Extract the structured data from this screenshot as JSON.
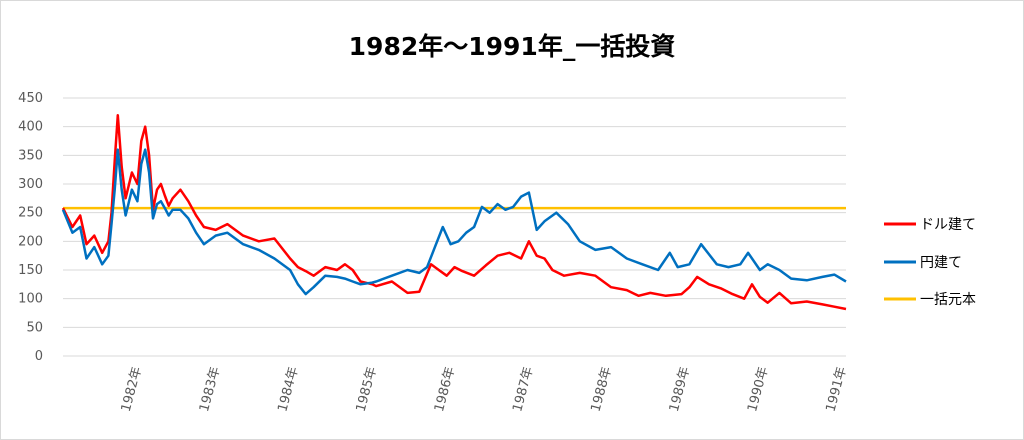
{
  "chart_data": {
    "type": "line",
    "title": "1982年～1991年_一括投資",
    "ylim": [
      0,
      450
    ],
    "yticks": [
      0,
      50,
      100,
      150,
      200,
      250,
      300,
      350,
      400,
      450
    ],
    "xlim": [
      1981.0,
      1991.0
    ],
    "xticks": [
      "1982年",
      "1983年",
      "1984年",
      "1985年",
      "1986年",
      "1987年",
      "1988年",
      "1989年",
      "1990年",
      "1991年"
    ],
    "grid": true,
    "legend_position": "right",
    "series": [
      {
        "name": "ドル建て",
        "color": "#ff0000",
        "x": [
          1981.0,
          1981.12,
          1981.22,
          1981.3,
          1981.4,
          1981.5,
          1981.58,
          1981.62,
          1981.66,
          1981.7,
          1981.75,
          1981.8,
          1981.88,
          1981.95,
          1982.0,
          1982.05,
          1982.1,
          1982.15,
          1982.2,
          1982.25,
          1982.3,
          1982.35,
          1982.4,
          1982.5,
          1982.6,
          1982.7,
          1982.8,
          1982.95,
          1983.1,
          1983.3,
          1983.5,
          1983.7,
          1983.9,
          1984.0,
          1984.1,
          1984.2,
          1984.35,
          1984.5,
          1984.6,
          1984.7,
          1984.8,
          1984.95,
          1985.0,
          1985.2,
          1985.4,
          1985.55,
          1985.7,
          1985.8,
          1985.9,
          1986.0,
          1986.1,
          1986.25,
          1986.4,
          1986.55,
          1986.7,
          1986.85,
          1986.95,
          1987.05,
          1987.15,
          1987.25,
          1987.4,
          1987.6,
          1987.8,
          1988.0,
          1988.2,
          1988.35,
          1988.5,
          1988.7,
          1988.9,
          1989.0,
          1989.1,
          1989.25,
          1989.4,
          1989.55,
          1989.7,
          1989.8,
          1989.9,
          1990.0,
          1990.15,
          1990.3,
          1990.5,
          1990.7,
          1990.85,
          1991.0
        ],
        "values": [
          258,
          225,
          245,
          195,
          210,
          180,
          200,
          250,
          340,
          420,
          330,
          275,
          320,
          300,
          375,
          400,
          350,
          255,
          290,
          300,
          280,
          262,
          275,
          290,
          270,
          245,
          225,
          220,
          230,
          210,
          200,
          205,
          170,
          155,
          148,
          140,
          155,
          150,
          160,
          150,
          130,
          125,
          122,
          130,
          110,
          112,
          160,
          150,
          140,
          155,
          148,
          140,
          158,
          175,
          180,
          170,
          200,
          175,
          170,
          150,
          140,
          145,
          140,
          120,
          115,
          105,
          110,
          105,
          108,
          120,
          138,
          125,
          118,
          108,
          100,
          125,
          103,
          93,
          110,
          92,
          95,
          90,
          86,
          82
        ]
      },
      {
        "name": "円建て",
        "color": "#0070c0",
        "x": [
          1981.0,
          1981.12,
          1981.22,
          1981.3,
          1981.4,
          1981.5,
          1981.58,
          1981.62,
          1981.66,
          1981.7,
          1981.75,
          1981.8,
          1981.88,
          1981.95,
          1982.0,
          1982.05,
          1982.1,
          1982.15,
          1982.2,
          1982.25,
          1982.3,
          1982.35,
          1982.4,
          1982.5,
          1982.6,
          1982.7,
          1982.8,
          1982.95,
          1983.1,
          1983.3,
          1983.5,
          1983.7,
          1983.9,
          1984.0,
          1984.1,
          1984.2,
          1984.35,
          1984.5,
          1984.6,
          1984.7,
          1984.8,
          1984.95,
          1985.0,
          1985.2,
          1985.4,
          1985.55,
          1985.65,
          1985.75,
          1985.85,
          1985.95,
          1986.05,
          1986.15,
          1986.25,
          1986.35,
          1986.45,
          1986.55,
          1986.65,
          1986.75,
          1986.85,
          1986.95,
          1987.05,
          1987.15,
          1987.3,
          1987.45,
          1987.6,
          1987.8,
          1988.0,
          1988.2,
          1988.4,
          1988.6,
          1988.75,
          1988.85,
          1989.0,
          1989.15,
          1989.35,
          1989.5,
          1989.65,
          1989.75,
          1989.9,
          1990.0,
          1990.15,
          1990.3,
          1990.5,
          1990.7,
          1990.85,
          1991.0
        ],
        "values": [
          255,
          215,
          225,
          170,
          190,
          160,
          175,
          230,
          290,
          360,
          290,
          245,
          290,
          270,
          335,
          360,
          320,
          240,
          265,
          270,
          258,
          245,
          255,
          255,
          240,
          215,
          195,
          210,
          215,
          195,
          185,
          170,
          150,
          125,
          108,
          120,
          140,
          138,
          135,
          130,
          125,
          128,
          130,
          140,
          150,
          145,
          155,
          190,
          225,
          195,
          200,
          215,
          225,
          260,
          250,
          265,
          255,
          260,
          278,
          285,
          220,
          235,
          250,
          230,
          200,
          185,
          190,
          170,
          160,
          150,
          180,
          155,
          160,
          195,
          160,
          155,
          160,
          180,
          150,
          160,
          150,
          135,
          132,
          138,
          142,
          130
        ]
      },
      {
        "name": "一括元本",
        "color": "#ffc000",
        "x": [
          1981.0,
          1991.0
        ],
        "values": [
          258,
          258
        ]
      }
    ]
  }
}
